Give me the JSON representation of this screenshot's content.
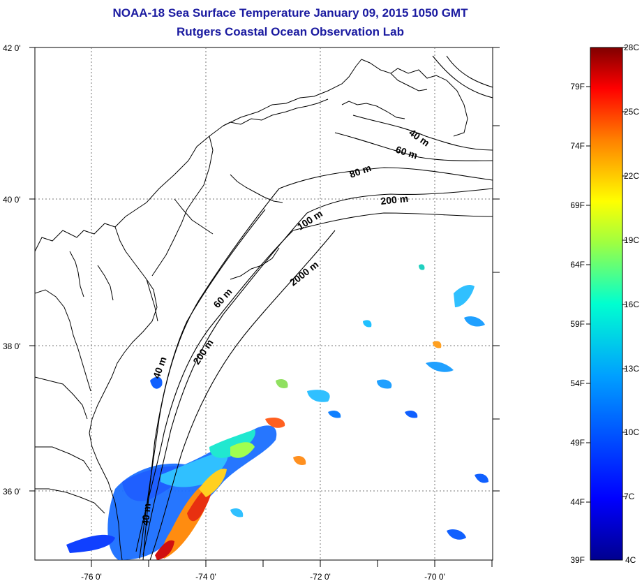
{
  "title": {
    "line1": "NOAA-18 Sea Surface Temperature January 09, 2015 1050 GMT",
    "line2": "Rutgers Coastal Ocean Observation Lab"
  },
  "map": {
    "lat_labels": [
      "42 0'",
      "40 0'",
      "38 0'",
      "36 0'"
    ],
    "lon_labels": [
      "-76 0'",
      "-74 0'",
      "-72 0'",
      "-70 0'"
    ],
    "contour_labels": [
      "40 m",
      "60 m",
      "80 m",
      "200 m",
      "100 m",
      "2000 m",
      "60 m",
      "200 m",
      "40 m",
      "40 m"
    ]
  },
  "colorbar": {
    "fahrenheit_labels": [
      "79F",
      "74F",
      "69F",
      "64F",
      "59F",
      "54F",
      "49F",
      "44F",
      "39F"
    ],
    "celsius_labels": [
      "28C",
      "25C",
      "22C",
      "19C",
      "16C",
      "13C",
      "10C",
      "7C",
      "4C"
    ],
    "colors": [
      "#00008f",
      "#0000ff",
      "#0080ff",
      "#00ffff",
      "#80ff80",
      "#ffff00",
      "#ff8000",
      "#ff0000",
      "#800000"
    ]
  }
}
